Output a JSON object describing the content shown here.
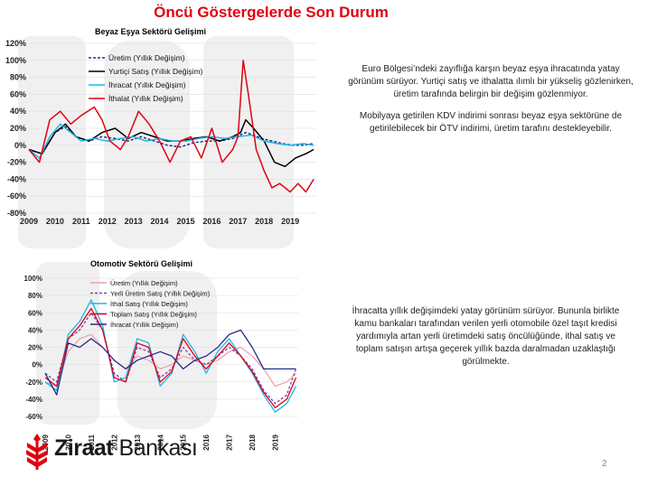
{
  "title": "Öncü Göstergelerde Son Durum",
  "page_number": "2",
  "logo": {
    "part1": "Ziraat",
    "part2": " Bankası",
    "icon": "wheat-logo-icon",
    "color": "#e1000f"
  },
  "text1": {
    "p1": "Euro Bölgesi’ndeki zayıflığa karşın beyaz eşya ihracatında yatay görünüm sürüyor.  Yurtiçi satış ve ithalatta ılımlı bir yükseliş gözlenirken, üretim tarafında belirgin bir değişim gözlenmiyor.",
    "p2": "Mobilyaya getirilen KDV indirimi sonrası beyaz eşya sektörüne de getirilebilecek bir ÖTV indirimi, üretim tarafını destekleyebilir."
  },
  "text2": {
    "p1": "İhracatta yıllık değişimdeki yatay görünüm  sürüyor.  Bununla birlikte kamu bankaları tarafından verilen yerli otomobile özel taşıt kredisi yardımıyla artan yerli üretimdeki  satış öncülüğünde, ithal satış ve  toplam satışın artışa geçerek yıllık bazda daralmadan uzaklaştığı görülmekte."
  },
  "chart_data": [
    {
      "type": "line",
      "title": "Beyaz Eşya Sektörü Gelişimi",
      "ylim": [
        -80,
        120
      ],
      "yticks": [
        "120%",
        "100%",
        "80%",
        "60%",
        "40%",
        "20%",
        "0%",
        "-20%",
        "-40%",
        "-60%",
        "-80%"
      ],
      "xlim": [
        2009,
        2020
      ],
      "xticks": [
        "2009",
        "2010",
        "2011",
        "2012",
        "2013",
        "2014",
        "2015",
        "2016",
        "2017",
        "2018",
        "2019"
      ],
      "grid": true,
      "legend_position": "top-left",
      "series": [
        {
          "name": "Üretim (Yıllık Değişim)",
          "color": "#1f2d8c",
          "dash": "dashed",
          "x": [
            2009,
            2009.5,
            2010,
            2010.4,
            2010.8,
            2011.3,
            2011.8,
            2012.3,
            2012.8,
            2013.3,
            2013.8,
            2014.3,
            2014.8,
            2015.3,
            2015.8,
            2016.3,
            2016.8,
            2017.3,
            2017.6,
            2017.9,
            2018.3,
            2018.7,
            2019.1,
            2019.5,
            2019.9
          ],
          "y": [
            -5,
            -10,
            15,
            22,
            10,
            5,
            10,
            8,
            5,
            10,
            5,
            0,
            -2,
            3,
            5,
            5,
            8,
            15,
            12,
            8,
            5,
            2,
            0,
            0,
            2
          ]
        },
        {
          "name": "Yurtiçi Satış (Yıllık Değişim)",
          "color": "#000000",
          "dash": "solid",
          "x": [
            2009,
            2009.5,
            2010,
            2010.4,
            2010.8,
            2011.3,
            2011.8,
            2012.3,
            2012.8,
            2013.3,
            2013.8,
            2014.3,
            2014.8,
            2015.3,
            2015.8,
            2016.3,
            2016.8,
            2017.1,
            2017.3,
            2017.6,
            2018.0,
            2018.4,
            2018.8,
            2019.2,
            2019.6,
            2019.9
          ],
          "y": [
            -5,
            -10,
            15,
            25,
            10,
            5,
            15,
            20,
            8,
            15,
            10,
            5,
            5,
            8,
            10,
            5,
            10,
            15,
            30,
            20,
            5,
            -20,
            -25,
            -15,
            -10,
            -5
          ]
        },
        {
          "name": "İhracat (Yıllık Değişim)",
          "color": "#20b6e6",
          "dash": "solid",
          "x": [
            2009,
            2009.4,
            2009.8,
            2010.2,
            2010.6,
            2011.0,
            2011.5,
            2012.0,
            2012.5,
            2013.0,
            2013.5,
            2014.0,
            2014.5,
            2015.0,
            2015.5,
            2016.0,
            2016.5,
            2017.0,
            2017.5,
            2018.0,
            2018.5,
            2019.0,
            2019.5,
            2019.9
          ],
          "y": [
            -5,
            -15,
            10,
            25,
            15,
            5,
            8,
            5,
            8,
            10,
            5,
            8,
            5,
            5,
            8,
            10,
            8,
            10,
            12,
            5,
            2,
            0,
            2,
            0
          ]
        },
        {
          "name": "İthalat (Yıllık Değişim)",
          "color": "#e1000f",
          "dash": "solid",
          "x": [
            2009,
            2009.4,
            2009.8,
            2010.2,
            2010.6,
            2011.0,
            2011.5,
            2011.8,
            2012.1,
            2012.5,
            2012.8,
            2013.2,
            2013.6,
            2014.0,
            2014.4,
            2014.8,
            2015.2,
            2015.6,
            2016.0,
            2016.4,
            2016.8,
            2017.0,
            2017.2,
            2017.4,
            2017.7,
            2018.0,
            2018.3,
            2018.6,
            2019.0,
            2019.3,
            2019.6,
            2019.9
          ],
          "y": [
            -5,
            -20,
            30,
            40,
            25,
            35,
            45,
            30,
            5,
            -5,
            10,
            40,
            25,
            5,
            -20,
            5,
            10,
            -15,
            20,
            -20,
            -5,
            10,
            100,
            60,
            -5,
            -30,
            -50,
            -45,
            -55,
            -45,
            -55,
            -40
          ]
        }
      ]
    },
    {
      "type": "line",
      "title": "Otomotiv Sektörü Gelişimi",
      "ylim": [
        -60,
        100
      ],
      "yticks": [
        "100%",
        "80%",
        "60%",
        "40%",
        "20%",
        "0%",
        "-20%",
        "-40%",
        "-60%"
      ],
      "xlim": [
        2009,
        2020
      ],
      "xticks": [
        "2009",
        "2010",
        "2011",
        "2012",
        "2013",
        "2014",
        "2015",
        "2016",
        "2017",
        "2018",
        "2019"
      ],
      "grid": true,
      "legend_position": "top-left",
      "series": [
        {
          "name": "Üretim (Yıllık Değişim)",
          "color": "#f2a2ae",
          "dash": "solid",
          "x": [
            2009,
            2009.5,
            2010,
            2010.5,
            2011,
            2011.5,
            2012,
            2012.5,
            2013,
            2013.5,
            2014,
            2014.5,
            2015,
            2015.5,
            2016,
            2016.5,
            2017,
            2017.5,
            2018,
            2018.5,
            2019,
            2019.5,
            2019.9
          ],
          "y": [
            -20,
            -25,
            15,
            30,
            35,
            20,
            5,
            -5,
            10,
            5,
            -5,
            0,
            10,
            5,
            0,
            5,
            15,
            20,
            10,
            -5,
            -25,
            -20,
            -10
          ]
        },
        {
          "name": "Yerli Üretim Satış  (Yıllık Değişim)",
          "color": "#7b3fb0",
          "dash": "dashed",
          "x": [
            2009,
            2009.5,
            2010,
            2010.5,
            2011,
            2011.5,
            2012,
            2012.5,
            2013,
            2013.5,
            2014,
            2014.5,
            2015,
            2015.5,
            2016,
            2016.5,
            2017,
            2017.5,
            2018,
            2018.5,
            2019,
            2019.5,
            2019.9
          ],
          "y": [
            -10,
            -20,
            30,
            40,
            60,
            40,
            -10,
            -20,
            20,
            15,
            -15,
            -5,
            20,
            5,
            0,
            10,
            20,
            10,
            -5,
            -30,
            -45,
            -35,
            -5
          ]
        },
        {
          "name": "İthal Satış (Yıllık Değişim)",
          "color": "#20b6e6",
          "dash": "solid",
          "x": [
            2009,
            2009.5,
            2010,
            2010.5,
            2011,
            2011.5,
            2012,
            2012.5,
            2013,
            2013.5,
            2014,
            2014.5,
            2015,
            2015.5,
            2016,
            2016.5,
            2017,
            2017.5,
            2018,
            2018.5,
            2019,
            2019.5,
            2019.9
          ],
          "y": [
            -20,
            -30,
            35,
            50,
            75,
            45,
            -20,
            -15,
            30,
            25,
            -25,
            -10,
            35,
            15,
            -10,
            15,
            30,
            10,
            -10,
            -35,
            -55,
            -45,
            -25
          ]
        },
        {
          "name": "Toplam Satış (Yıllık Değişim)",
          "color": "#e1000f",
          "dash": "solid",
          "x": [
            2009,
            2009.5,
            2010,
            2010.5,
            2011,
            2011.5,
            2012,
            2012.5,
            2013,
            2013.5,
            2014,
            2014.5,
            2015,
            2015.5,
            2016,
            2016.5,
            2017,
            2017.5,
            2018,
            2018.5,
            2019,
            2019.5,
            2019.9
          ],
          "y": [
            -15,
            -25,
            30,
            45,
            65,
            40,
            -15,
            -20,
            25,
            20,
            -20,
            -8,
            30,
            10,
            -5,
            10,
            25,
            10,
            -8,
            -32,
            -50,
            -40,
            -15
          ]
        },
        {
          "name": "İhracat (Yıllık Değişim)",
          "color": "#1f2d8c",
          "dash": "solid",
          "x": [
            2009,
            2009.5,
            2010,
            2010.5,
            2011,
            2011.5,
            2012,
            2012.5,
            2013,
            2013.5,
            2014,
            2014.5,
            2015,
            2015.5,
            2016,
            2016.5,
            2017,
            2017.5,
            2018,
            2018.5,
            2019,
            2019.5,
            2019.9
          ],
          "y": [
            -10,
            -35,
            25,
            20,
            30,
            20,
            5,
            -5,
            5,
            10,
            15,
            10,
            -5,
            5,
            10,
            20,
            35,
            40,
            20,
            -5,
            -5,
            -5,
            -5
          ]
        }
      ]
    }
  ]
}
